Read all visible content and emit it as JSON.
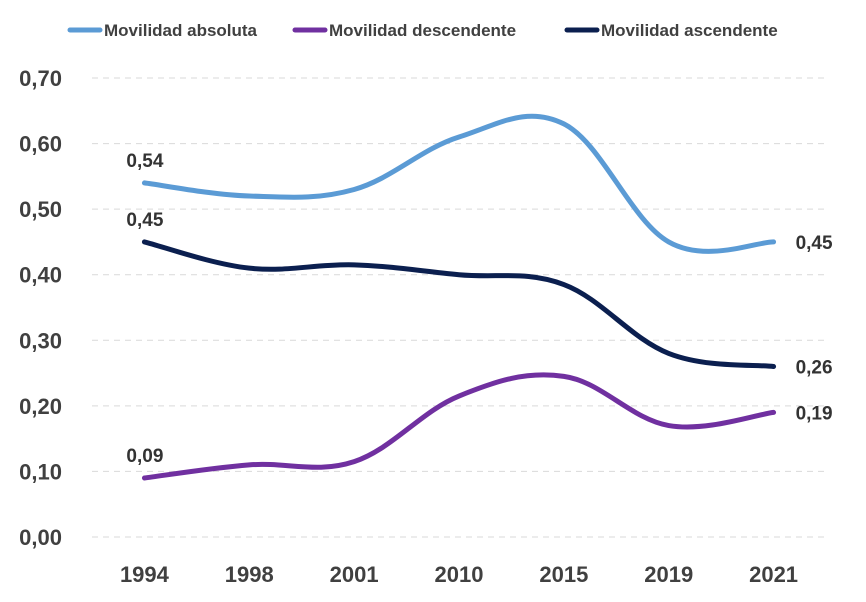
{
  "chart_data": {
    "type": "line",
    "categories": [
      "1994",
      "1998",
      "2001",
      "2010",
      "2015",
      "2019",
      "2021"
    ],
    "ylim": [
      0,
      0.7
    ],
    "yticks": [
      "0,00",
      "0,10",
      "0,20",
      "0,30",
      "0,40",
      "0,50",
      "0,60",
      "0,70"
    ],
    "grid": true,
    "legend_position": "top",
    "series": [
      {
        "name": "Movilidad absoluta",
        "color": "#5B9BD5",
        "values": [
          0.54,
          0.52,
          0.53,
          0.61,
          0.63,
          0.45,
          0.45
        ],
        "labels": [
          "0,54",
          "",
          "",
          "",
          "",
          "",
          "0,45"
        ]
      },
      {
        "name": "Movilidad descendente",
        "color": "#7030A0",
        "values": [
          0.09,
          0.11,
          0.115,
          0.215,
          0.245,
          0.17,
          0.19
        ],
        "labels": [
          "0,09",
          "",
          "",
          "",
          "",
          "",
          "0,19"
        ]
      },
      {
        "name": "Movilidad ascendente",
        "color": "#0B1F4F",
        "values": [
          0.45,
          0.41,
          0.415,
          0.4,
          0.385,
          0.28,
          0.26
        ],
        "labels": [
          "0,45",
          "",
          "",
          "",
          "",
          "",
          "0,26"
        ]
      }
    ]
  }
}
